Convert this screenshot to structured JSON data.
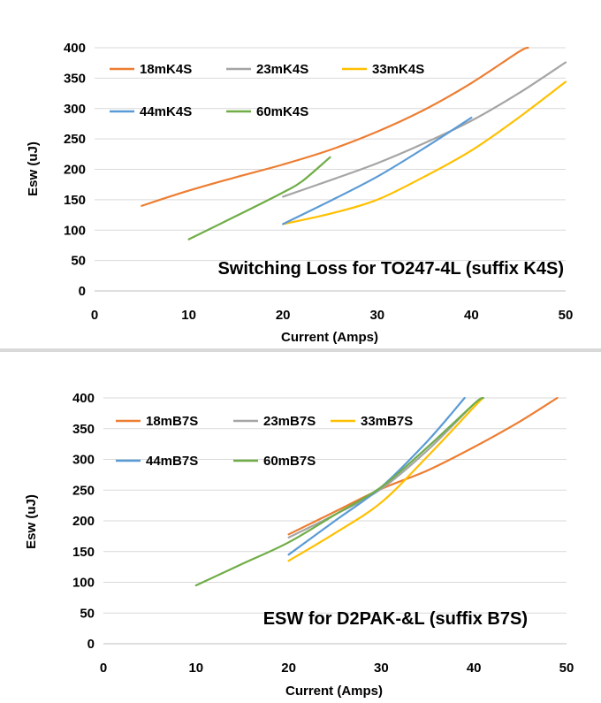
{
  "chart_data": [
    {
      "type": "line",
      "annotation": "Switching Loss for TO247-4L (suffix K4S)",
      "xlabel": "Current (Amps)",
      "ylabel": "Esw (uJ)",
      "xlim": [
        0,
        50
      ],
      "ylim": [
        0,
        400
      ],
      "xticks": [
        "0",
        "10",
        "20",
        "30",
        "40",
        "50"
      ],
      "yticks": [
        "0",
        "50",
        "100",
        "150",
        "200",
        "250",
        "300",
        "350",
        "400"
      ],
      "grid": "horizontal",
      "legend_position": "top-left",
      "series": [
        {
          "name": "18mK4S",
          "color": "#ED7D31",
          "x": [
            5,
            10,
            15,
            20,
            25,
            30,
            35,
            40,
            45,
            46
          ],
          "y": [
            140,
            165,
            187,
            208,
            232,
            262,
            298,
            342,
            393,
            400
          ]
        },
        {
          "name": "23mK4S",
          "color": "#A5A5A5",
          "x": [
            20,
            25,
            30,
            35,
            40,
            45,
            50
          ],
          "y": [
            155,
            182,
            210,
            243,
            280,
            325,
            376
          ]
        },
        {
          "name": "33mK4S",
          "color": "#FFC000",
          "x": [
            20,
            25,
            30,
            35,
            40,
            45,
            50
          ],
          "y": [
            110,
            127,
            150,
            188,
            231,
            285,
            344
          ]
        },
        {
          "name": "44mK4S",
          "color": "#5B9BD5",
          "x": [
            20,
            25,
            30,
            35,
            40
          ],
          "y": [
            110,
            148,
            188,
            235,
            285
          ]
        },
        {
          "name": "60mK4S",
          "color": "#70AD47",
          "x": [
            10,
            15,
            20,
            22,
            25
          ],
          "y": [
            85,
            123,
            162,
            180,
            220
          ]
        }
      ]
    },
    {
      "type": "line",
      "annotation": "ESW for D2PAK-&L (suffix B7S)",
      "xlabel": "Current (Amps)",
      "ylabel": "Esw (uJ)",
      "xlim": [
        0,
        50
      ],
      "ylim": [
        0,
        400
      ],
      "xticks": [
        "0",
        "10",
        "20",
        "30",
        "40",
        "50"
      ],
      "yticks": [
        "0",
        "50",
        "100",
        "150",
        "200",
        "250",
        "300",
        "350",
        "400"
      ],
      "grid": "horizontal",
      "legend_position": "top-left",
      "series": [
        {
          "name": "18mB7S",
          "color": "#ED7D31",
          "x": [
            20,
            25,
            30,
            35,
            40,
            45,
            49
          ],
          "y": [
            178,
            215,
            252,
            282,
            320,
            362,
            400
          ]
        },
        {
          "name": "23mB7S",
          "color": "#A5A5A5",
          "x": [
            20,
            25,
            30,
            35,
            40,
            41
          ],
          "y": [
            173,
            210,
            252,
            315,
            390,
            400
          ]
        },
        {
          "name": "33mB7S",
          "color": "#FFC000",
          "x": [
            20,
            25,
            30,
            35,
            40,
            41
          ],
          "y": [
            135,
            180,
            230,
            305,
            385,
            400
          ]
        },
        {
          "name": "44mB7S",
          "color": "#5B9BD5",
          "x": [
            20,
            25,
            30,
            35,
            39
          ],
          "y": [
            145,
            200,
            255,
            330,
            400
          ]
        },
        {
          "name": "60mB7S",
          "color": "#70AD47",
          "x": [
            10,
            15,
            20,
            25,
            30,
            35,
            40,
            41
          ],
          "y": [
            95,
            130,
            165,
            210,
            255,
            320,
            390,
            400
          ]
        }
      ]
    }
  ]
}
